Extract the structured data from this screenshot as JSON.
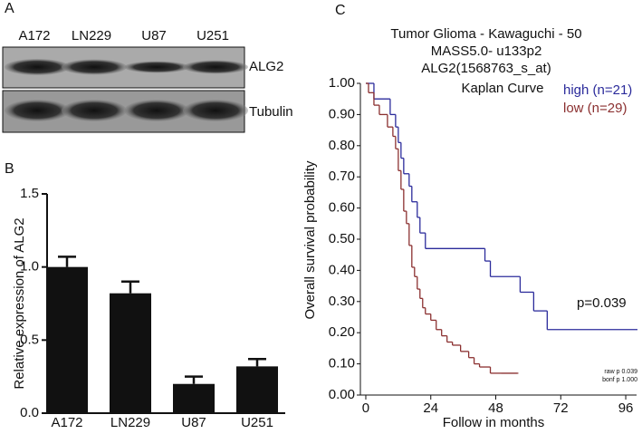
{
  "panels": [
    "A",
    "B",
    "C"
  ],
  "blot": {
    "lanes": [
      "A172",
      "LN229",
      "U87",
      "U251"
    ],
    "rows": [
      "ALG2",
      "Tubulin"
    ]
  },
  "chart_data": [
    {
      "type": "bar",
      "y_label": "Relative expression of ALG2",
      "categories": [
        "A172",
        "LN229",
        "U87",
        "U251"
      ],
      "values": [
        1.0,
        0.82,
        0.2,
        0.32
      ],
      "errors": [
        0.07,
        0.08,
        0.05,
        0.05
      ],
      "color": "#111111",
      "ylim": [
        0,
        1.5
      ],
      "yticks": [
        {
          "value": 0,
          "label": "0.0"
        },
        0.5,
        {
          "value": 1,
          "label": "1.0"
        },
        1.5
      ]
    },
    {
      "type": "step",
      "title": [
        "Tumor Glioma - Kawaguchi - 50",
        "MASS5.0- u133p2",
        "ALG2(1568763_s_at)",
        "Kaplan Curve"
      ],
      "x_label": "Follow in months",
      "y_label": "Overall survival probability",
      "xlim": [
        -2,
        100
      ],
      "xticks": [
        0,
        24,
        48,
        72,
        96
      ],
      "ylim": [
        0,
        1
      ],
      "yticks": [
        {
          "value": 0,
          "label": "0.00"
        },
        {
          "value": 0.1,
          "label": "0.10"
        },
        {
          "value": 0.2,
          "label": "0.20"
        },
        {
          "value": 0.3,
          "label": "0.30"
        },
        {
          "value": 0.4,
          "label": "0.40"
        },
        {
          "value": 0.5,
          "label": "0.50"
        },
        {
          "value": 0.6,
          "label": "0.60"
        },
        {
          "value": 0.7,
          "label": "0.70"
        },
        {
          "value": 0.8,
          "label": "0.80"
        },
        {
          "value": 0.9,
          "label": "0.90"
        },
        {
          "value": 1,
          "label": "1.00"
        }
      ],
      "series": [
        {
          "name": "high (n=21)",
          "color": "#2b2b9b",
          "x": [
            0,
            3,
            9,
            11,
            12,
            13,
            14,
            16,
            17,
            19,
            20,
            22,
            44,
            46,
            57,
            62,
            67,
            100
          ],
          "values": [
            1.0,
            0.95,
            0.9,
            0.86,
            0.81,
            0.76,
            0.71,
            0.67,
            0.62,
            0.57,
            0.52,
            0.47,
            0.43,
            0.38,
            0.33,
            0.27,
            0.21,
            0.21
          ]
        },
        {
          "name": "low (n=29)",
          "color": "#8b3030",
          "x": [
            0,
            1,
            3,
            5,
            8,
            10,
            11,
            12,
            13,
            14,
            15,
            16,
            17,
            18,
            19,
            20,
            21,
            22,
            24,
            26,
            28,
            30,
            32,
            35,
            38,
            40,
            42,
            46,
            50,
            56
          ],
          "values": [
            1.0,
            0.97,
            0.93,
            0.9,
            0.86,
            0.83,
            0.79,
            0.72,
            0.66,
            0.59,
            0.55,
            0.48,
            0.41,
            0.38,
            0.34,
            0.31,
            0.28,
            0.26,
            0.24,
            0.21,
            0.19,
            0.17,
            0.16,
            0.14,
            0.12,
            0.1,
            0.09,
            0.07,
            0.07,
            0.07
          ]
        }
      ],
      "annotations": [
        "p=0.039",
        "raw p 0.039",
        "bonf p 1.000"
      ]
    }
  ]
}
